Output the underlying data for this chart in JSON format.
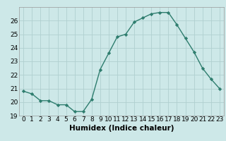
{
  "x": [
    0,
    1,
    2,
    3,
    4,
    5,
    6,
    7,
    8,
    9,
    10,
    11,
    12,
    13,
    14,
    15,
    16,
    17,
    18,
    19,
    20,
    21,
    22,
    23
  ],
  "y": [
    20.8,
    20.6,
    20.1,
    20.1,
    19.8,
    19.8,
    19.3,
    19.3,
    20.2,
    22.4,
    23.6,
    24.8,
    25.0,
    25.9,
    26.2,
    26.5,
    26.6,
    26.6,
    25.7,
    24.7,
    23.7,
    22.5,
    21.7,
    21.0
  ],
  "line_color": "#2e7d6e",
  "marker": "D",
  "marker_size": 2.2,
  "line_width": 1.0,
  "xlabel": "Humidex (Indice chaleur)",
  "xlabel_fontsize": 7.5,
  "tick_fontsize": 6.5,
  "ylim": [
    19.0,
    27.0
  ],
  "xlim": [
    -0.5,
    23.5
  ],
  "yticks": [
    19,
    20,
    21,
    22,
    23,
    24,
    25,
    26
  ],
  "xticks": [
    0,
    1,
    2,
    3,
    4,
    5,
    6,
    7,
    8,
    9,
    10,
    11,
    12,
    13,
    14,
    15,
    16,
    17,
    18,
    19,
    20,
    21,
    22,
    23
  ],
  "background_color": "#cde8e8",
  "grid_color": "#b0d0d0"
}
